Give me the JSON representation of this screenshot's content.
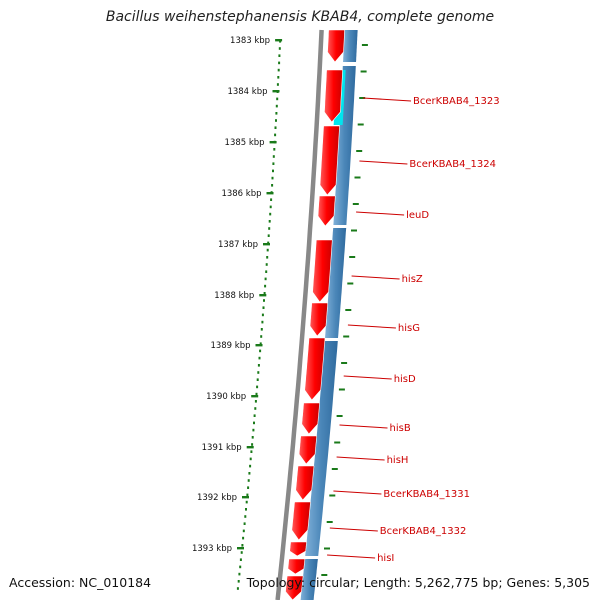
{
  "title": "Bacillus weihenstephanensis KBAB4, complete genome",
  "accession": "Accession: NC_010184",
  "stats": "Topology: circular; Length: 5,262,775 bp; Genes: 5,305",
  "colors": {
    "forward_strand": "#ff0000",
    "reverse_strand": "#4a86b8",
    "highlight": "#00e5ee",
    "backbone": "#888888",
    "tick": "#1a7a1a",
    "label": "#cc0000"
  },
  "ticks": [
    "1383 kbp",
    "1384 kbp",
    "1385 kbp",
    "1386 kbp",
    "1387 kbp",
    "1388 kbp",
    "1389 kbp",
    "1390 kbp",
    "1391 kbp",
    "1392 kbp",
    "1393 kbp"
  ],
  "genes": [
    "BcerKBAB4_1323",
    "BcerKBAB4_1324",
    "leuD",
    "hisZ",
    "hisG",
    "hisD",
    "hisB",
    "hisH",
    "BcerKBAB4_1331",
    "BcerKBAB4_1332",
    "hisI"
  ]
}
